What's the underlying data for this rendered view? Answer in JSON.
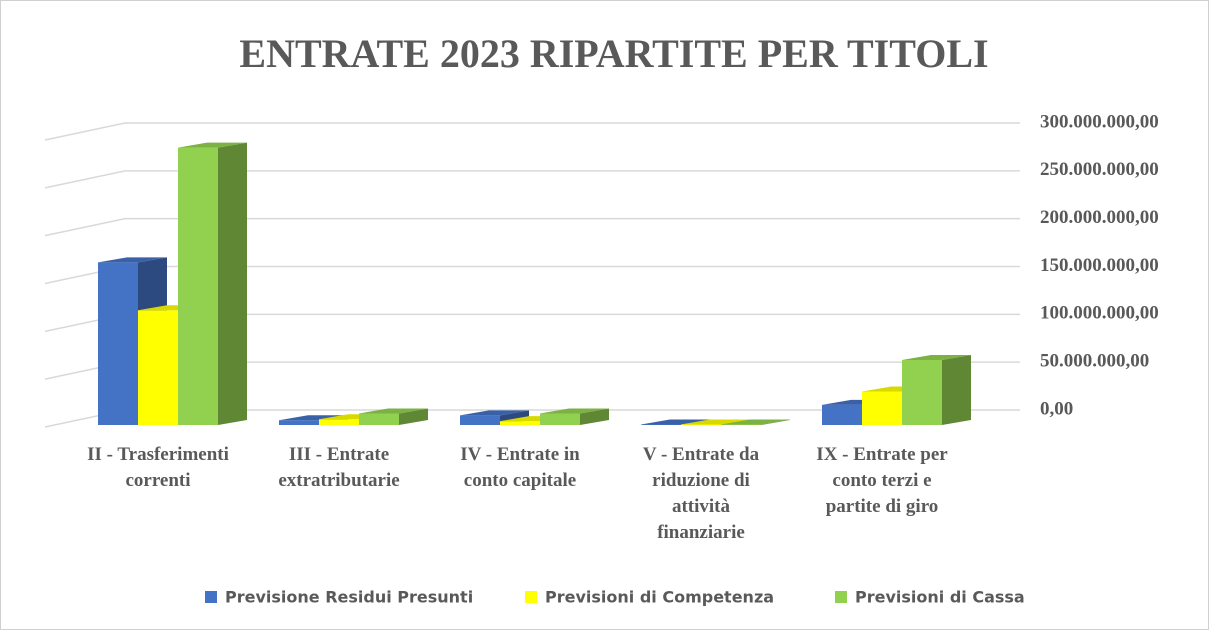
{
  "chart_data": {
    "type": "bar3d",
    "title": "ENTRATE 2023 RIPARTITE PER TITOLI",
    "categories": [
      "II - Trasferimenti correnti",
      "III - Entrate extratributarie",
      "IV - Entrate in conto capitale",
      "V -  Entrate da riduzione di attività finanziarie",
      "IX - Entrate per conto terzi e partite di giro"
    ],
    "series": [
      {
        "name": "Previsione Residui Presunti",
        "color": "#4472c4",
        "values": [
          170000000,
          5000000,
          10000000,
          500000,
          21000000
        ]
      },
      {
        "name": "Previsioni di Competenza",
        "color": "#ffff00",
        "values": [
          120000000,
          6000000,
          4000000,
          500000,
          35000000
        ]
      },
      {
        "name": "Previsioni di Cassa",
        "color": "#92d050",
        "values": [
          290000000,
          12000000,
          12000000,
          500000,
          68000000
        ]
      }
    ],
    "ylim": [
      0,
      300000000
    ],
    "yticks": [
      {
        "value": 0,
        "label": "0,00"
      },
      {
        "value": 50000000,
        "label": "50.000.000,00"
      },
      {
        "value": 100000000,
        "label": "100.000.000,00"
      },
      {
        "value": 150000000,
        "label": "150.000.000,00"
      },
      {
        "value": 200000000,
        "label": "200.000.000,00"
      },
      {
        "value": 250000000,
        "label": "250.000.000,00"
      },
      {
        "value": 300000000,
        "label": "300.000.000,00"
      }
    ],
    "grid": true,
    "legend": "bottom"
  }
}
